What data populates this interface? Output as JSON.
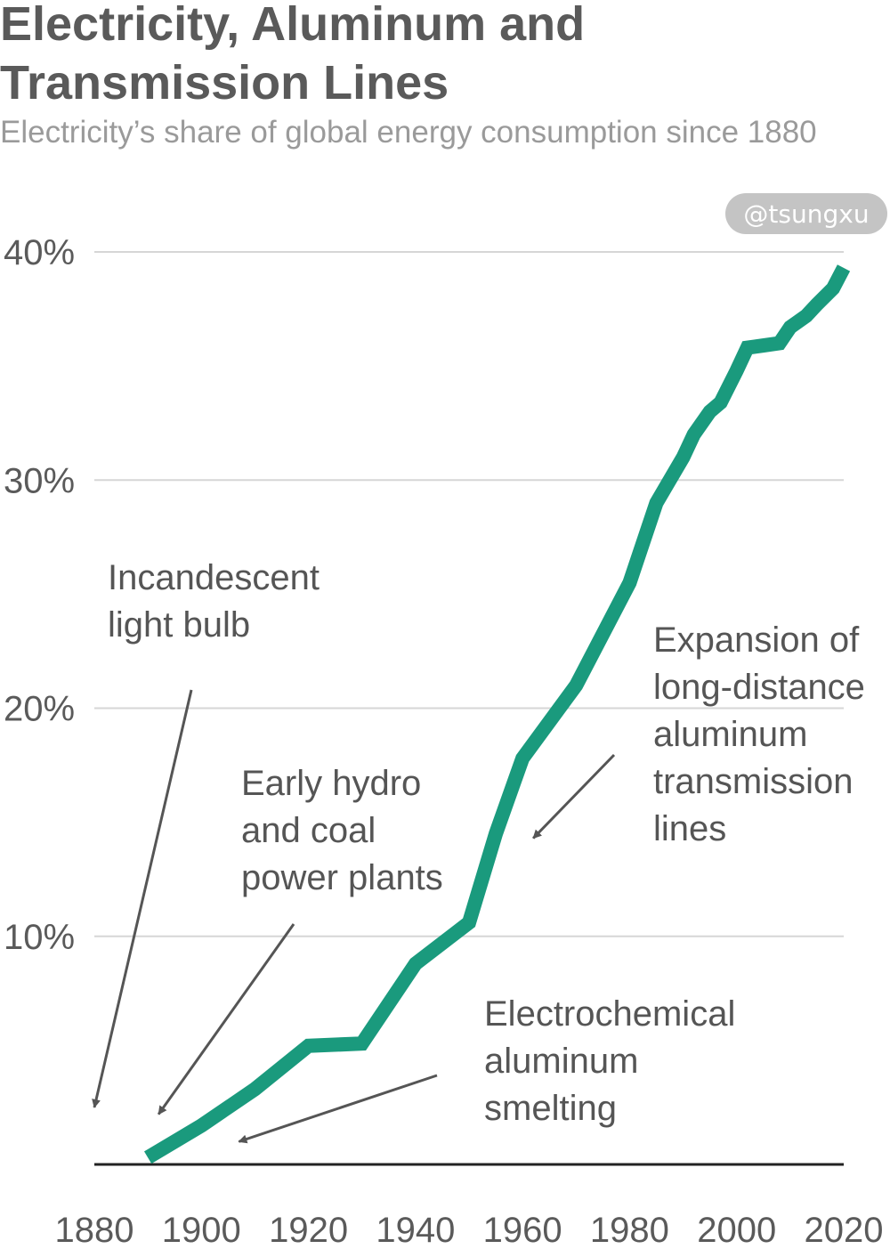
{
  "title_lines": [
    "Electricity, Aluminum and",
    "Transmission Lines"
  ],
  "subtitle": "Electricity’s share of global energy consumption since 1880",
  "watermark": "@tsungxu",
  "colors": {
    "line": "#1a9a7d",
    "grid": "#d6d6d6",
    "axis": "#222222",
    "arrow": "#555555",
    "text": "#555555",
    "watermark_bg": "#c4c4c4"
  },
  "chart_data": {
    "type": "line",
    "title": "Electricity, Aluminum and Transmission Lines",
    "subtitle": "Electricity’s share of global energy consumption since 1880",
    "xlim": [
      1880,
      2020
    ],
    "ylim": [
      0,
      40
    ],
    "x_ticks": [
      1880,
      1900,
      1920,
      1940,
      1960,
      1980,
      2000,
      2020
    ],
    "x_tick_labels": [
      "1880",
      "1900",
      "1920",
      "1940",
      "1960",
      "1980",
      "2000",
      "2020"
    ],
    "y_ticks": [
      10,
      20,
      30,
      40
    ],
    "y_tick_labels": [
      "10%",
      "20%",
      "30%",
      "40%"
    ],
    "grid": true,
    "series": [
      {
        "x": [
          1890,
          1900,
          1910,
          1920,
          1930,
          1940,
          1950,
          1955,
          1960,
          1970,
          1980,
          1985,
          1990,
          1992,
          1995,
          1997,
          2000,
          2002,
          2005,
          2008,
          2010,
          2013,
          2015,
          2018,
          2020
        ],
        "y": [
          0.3,
          1.7,
          3.3,
          5.2,
          5.3,
          8.8,
          10.6,
          14.5,
          17.8,
          21.0,
          25.5,
          29.0,
          31.0,
          32.0,
          33.0,
          33.4,
          34.8,
          35.8,
          35.9,
          36.0,
          36.7,
          37.2,
          37.7,
          38.4,
          39.3
        ]
      }
    ],
    "annotations": [
      {
        "lines": [
          "Incandescent",
          "light bulb"
        ],
        "arrow_to": [
          1880,
          2.5
        ]
      },
      {
        "lines": [
          "Early hydro",
          "and coal",
          "power plants"
        ],
        "arrow_to": [
          1892,
          2.2
        ]
      },
      {
        "lines": [
          "Expansion of",
          "long-distance",
          "aluminum",
          "transmission",
          "lines"
        ],
        "arrow_to": [
          1962,
          14.3
        ]
      },
      {
        "lines": [
          "Electrochemical",
          "aluminum",
          "smelting"
        ],
        "arrow_to": [
          1907,
          1.0
        ]
      }
    ]
  }
}
